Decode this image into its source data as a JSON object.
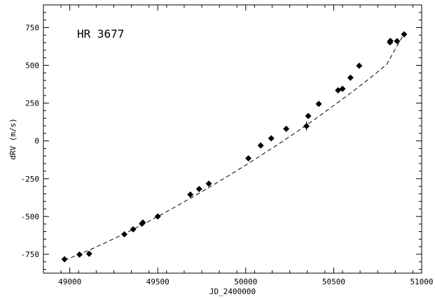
{
  "chart_data": {
    "type": "scatter",
    "xlabel": "JD_2400000",
    "ylabel": "dRV (m/s)",
    "annotation": "HR 3677",
    "xlim": [
      48850,
      51000
    ],
    "ylim": [
      -875,
      900
    ],
    "x_ticks": [
      49000,
      49500,
      50000,
      50500,
      51000
    ],
    "y_ticks": [
      -750,
      -500,
      -250,
      0,
      250,
      500,
      750
    ],
    "x_tick_labels": [
      "49000",
      "49500",
      "50000",
      "50500",
      "51000"
    ],
    "y_tick_labels": [
      "-750",
      "-500",
      "-250",
      "0",
      "250",
      "500",
      "750"
    ],
    "grid": false,
    "points": [
      {
        "x": 48970,
        "y": -783,
        "err": 0
      },
      {
        "x": 49055,
        "y": -752,
        "err": 0
      },
      {
        "x": 49110,
        "y": -747,
        "err": 0
      },
      {
        "x": 49310,
        "y": -618,
        "err": 0
      },
      {
        "x": 49360,
        "y": -585,
        "err": 0
      },
      {
        "x": 49410,
        "y": -548,
        "err": 0
      },
      {
        "x": 49415,
        "y": -540,
        "err": 0
      },
      {
        "x": 49500,
        "y": -500,
        "err": 0
      },
      {
        "x": 49685,
        "y": -355,
        "err": 0
      },
      {
        "x": 49735,
        "y": -318,
        "err": 0
      },
      {
        "x": 49790,
        "y": -283,
        "err": 0
      },
      {
        "x": 50015,
        "y": -115,
        "err": 0
      },
      {
        "x": 50085,
        "y": -30,
        "err": 0
      },
      {
        "x": 50145,
        "y": 17,
        "err": 0
      },
      {
        "x": 50230,
        "y": 80,
        "err": 0
      },
      {
        "x": 50345,
        "y": 98,
        "err": 30
      },
      {
        "x": 50355,
        "y": 165,
        "err": 0
      },
      {
        "x": 50415,
        "y": 245,
        "err": 0
      },
      {
        "x": 50525,
        "y": 335,
        "err": 0
      },
      {
        "x": 50550,
        "y": 345,
        "err": 0
      },
      {
        "x": 50595,
        "y": 418,
        "err": 0
      },
      {
        "x": 50645,
        "y": 497,
        "err": 0
      },
      {
        "x": 50820,
        "y": 652,
        "err": 0
      },
      {
        "x": 50822,
        "y": 662,
        "err": 0
      },
      {
        "x": 50860,
        "y": 660,
        "err": 0
      },
      {
        "x": 50900,
        "y": 705,
        "err": 0
      }
    ],
    "fit_line": {
      "style": "dashed",
      "x": [
        48970,
        49100,
        49200,
        49300,
        49400,
        49500,
        49600,
        49700,
        49800,
        49900,
        50000,
        50100,
        50200,
        50300,
        50400,
        50500,
        50600,
        50700,
        50800,
        50900
      ],
      "y": [
        -790,
        -728,
        -675,
        -620,
        -562,
        -500,
        -436,
        -370,
        -302,
        -232,
        -160,
        -86,
        -10,
        68,
        150,
        234,
        320,
        410,
        505,
        710
      ]
    }
  }
}
